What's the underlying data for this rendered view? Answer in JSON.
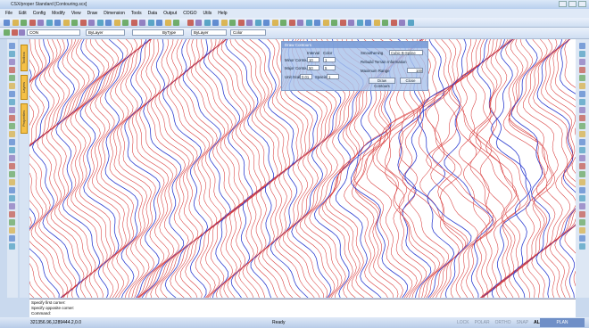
{
  "window": {
    "title": "CSX/proper Standard [Contouring.scx]"
  },
  "menu": [
    "File",
    "Edit",
    "Config",
    "Modify",
    "View",
    "Draw",
    "Dimension",
    "Tools",
    "Data",
    "Output",
    "COGO",
    "Utils",
    "Help"
  ],
  "toolbar": {
    "layer": "CON",
    "color": "ByLayer",
    "linetype": "ByType",
    "lineweight": "ByLayer",
    "plot": "Color"
  },
  "side_tabs": [
    "Toolbox",
    "Layers",
    "Properties"
  ],
  "dialog": {
    "title": "Draw Contours",
    "col_interval": "Interval",
    "col_color": "Color",
    "minor_label": "Minor Contours",
    "minor_interval": "10",
    "minor_color": "1",
    "major_label": "Major Contours",
    "major_interval": "50",
    "major_color": "5",
    "unit_label": "Unit Scale",
    "unit_value": "0.01",
    "spacing_label": "Spacing",
    "spacing_value": "1",
    "smooth_label": "Smoothening",
    "smooth_value": "Cubic B-Spline",
    "rebuild_label": "Rebuild Terrain Information",
    "range_label": "Maximum Range",
    "range_value": "100",
    "draw_button": "Draw Contours",
    "close_button": "Close"
  },
  "command": [
    "Specify first corner:",
    "Specify opposite corner:",
    "Command:"
  ],
  "status": {
    "coords": "321356.96,1289444.2,0.0",
    "state": "Ready",
    "toggles": [
      "LOCK",
      "POLAR",
      "ORTHO",
      "SNAP",
      "ALL",
      "GRID"
    ],
    "mode": "PLAN"
  }
}
